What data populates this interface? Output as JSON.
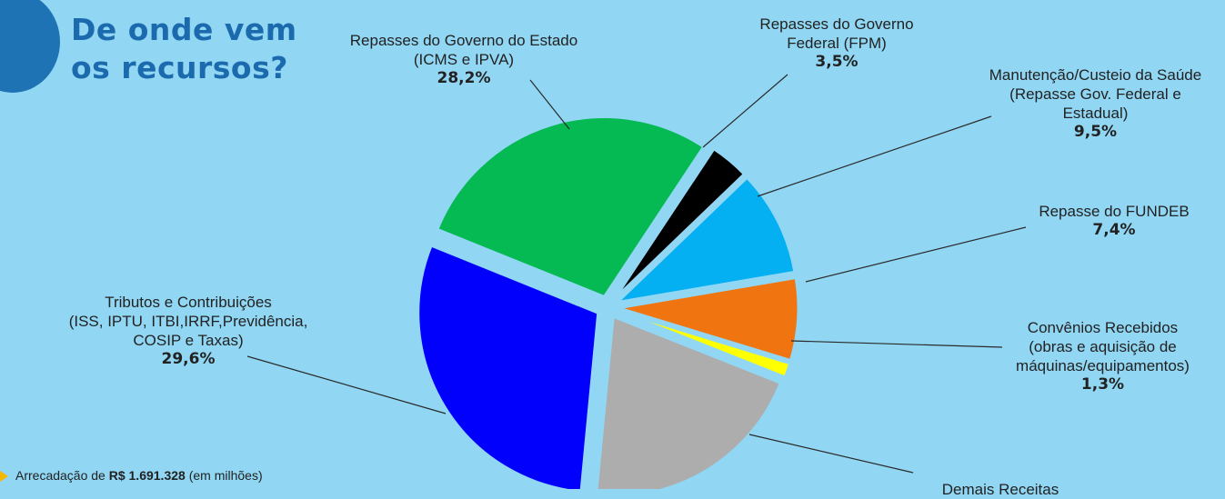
{
  "header": {
    "title_line1": "De onde vem",
    "title_line2": "os recursos?"
  },
  "footer": {
    "prefix": "Arrecadação de",
    "amount": "R$ 1.691.328",
    "suffix": "(em milhões)"
  },
  "colors": {
    "background": "#91d7f4",
    "title": "#1b6aad",
    "footer_arrow": "#f5b800"
  },
  "chart_data": {
    "type": "pie",
    "title": "De onde vem os recursos?",
    "series": [
      {
        "name": "Repasses do Governo do Estado (ICMS e IPVA)",
        "label_lines": [
          "Repasses do Governo do Estado",
          "(ICMS e IPVA)"
        ],
        "value": 28.2,
        "label": "28,2%",
        "color": "#05b953"
      },
      {
        "name": "Repasses do Governo Federal (FPM)",
        "label_lines": [
          "Repasses do Governo",
          "Federal (FPM)"
        ],
        "value": 3.5,
        "label": "3,5%",
        "color": "#000000"
      },
      {
        "name": "Manutenção/Custeio da Saúde (Repasse Gov. Federal e Estadual)",
        "label_lines": [
          "Manutenção/Custeio da Saúde",
          "(Repasse Gov. Federal e",
          "Estadual)"
        ],
        "value": 9.5,
        "label": "9,5%",
        "color": "#04b0f1"
      },
      {
        "name": "Repasse do FUNDEB",
        "label_lines": [
          "Repasse do FUNDEB"
        ],
        "value": 7.4,
        "label": "7,4%",
        "color": "#f07511"
      },
      {
        "name": "Convênios Recebidos (obras e aquisição de máquinas/equipamentos)",
        "label_lines": [
          "Convênios Recebidos",
          "(obras e aquisição de",
          "máquinas/equipamentos)"
        ],
        "value": 1.3,
        "label": "1,3%",
        "color": "#ffff00"
      },
      {
        "name": "Demais Receitas",
        "label_lines": [
          "Demais Receitas"
        ],
        "value": 20.5,
        "label": "",
        "color": "#adadad"
      },
      {
        "name": "Tributos e Contribuições (ISS, IPTU, ITBI,IRRF,Previdência, COSIP e Taxas)",
        "label_lines": [
          "Tributos e Contribuições",
          "(ISS, IPTU, ITBI,IRRF,Previdência,",
          "COSIP e Taxas)"
        ],
        "value": 29.6,
        "label": "29,6%",
        "color": "#0000fc"
      }
    ]
  }
}
